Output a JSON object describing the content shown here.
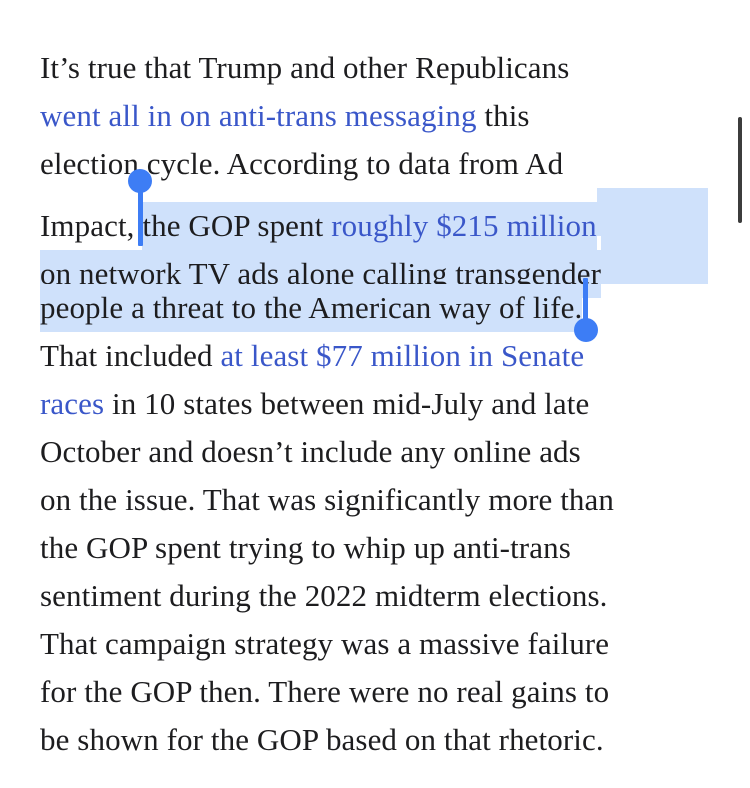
{
  "colors": {
    "background": "#ffffff",
    "text": "#1d1d1f",
    "link": "#3a57c9",
    "selection": "#cfe1fb",
    "handle": "#3d7df5",
    "scrollbar": "#3c3c3c"
  },
  "selection": {
    "selected_text": "the GOP spent roughly $215 million on network TV ads alone calling transgender people a threat to the American way of life."
  },
  "article": {
    "lines": [
      {
        "segments": [
          {
            "text": "It’s true that Trump and other Republicans",
            "style": "text"
          }
        ]
      },
      {
        "segments": [
          {
            "text": "went all in on anti-trans messaging",
            "style": "link"
          },
          {
            "text": " this",
            "style": "text"
          }
        ]
      },
      {
        "segments": [
          {
            "text": "election cycle. According to data from Ad",
            "style": "text"
          }
        ]
      },
      {
        "segments": [
          {
            "text": "Impact, ",
            "style": "text"
          },
          {
            "text": "the GOP spent ",
            "style": "text",
            "selected": true
          },
          {
            "text": "roughly $215 million",
            "style": "link",
            "selected": true
          }
        ],
        "fill_selection": true
      },
      {
        "segments": [
          {
            "text": "on network TV ads alone calling transgender",
            "style": "text",
            "selected": true
          }
        ],
        "fill_selection": true
      },
      {
        "segments": [
          {
            "text": "people a threat to the American way of life.",
            "style": "text",
            "selected": true
          }
        ]
      },
      {
        "segments": [
          {
            "text": "That included ",
            "style": "text"
          },
          {
            "text": "at least $77 million in Senate",
            "style": "link"
          }
        ]
      },
      {
        "segments": [
          {
            "text": "races",
            "style": "link"
          },
          {
            "text": " in 10 states between mid-July and late",
            "style": "text"
          }
        ]
      },
      {
        "segments": [
          {
            "text": "October and doesn’t include any online ads",
            "style": "text"
          }
        ]
      },
      {
        "segments": [
          {
            "text": "on the issue. That was significantly more than",
            "style": "text"
          }
        ]
      },
      {
        "segments": [
          {
            "text": "the GOP spent trying to whip up anti-trans",
            "style": "text"
          }
        ]
      },
      {
        "segments": [
          {
            "text": "sentiment during the 2022 midterm elections.",
            "style": "text"
          }
        ]
      },
      {
        "segments": [
          {
            "text": "That campaign strategy was a massive failure",
            "style": "text"
          }
        ]
      },
      {
        "segments": [
          {
            "text": "for the GOP then. There were no real gains to",
            "style": "text"
          }
        ]
      },
      {
        "segments": [
          {
            "text": "be shown for the GOP based on that rhetoric.",
            "style": "text"
          }
        ]
      }
    ]
  }
}
